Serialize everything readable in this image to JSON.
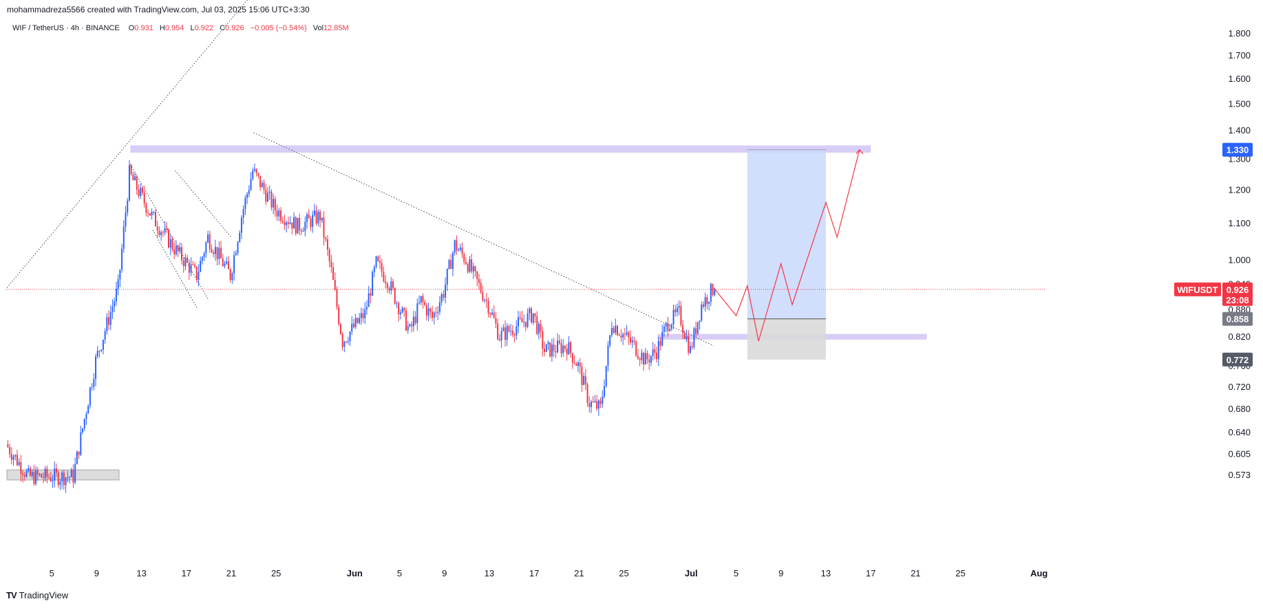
{
  "header": {
    "attribution": "mohammadreza5566 created with TradingView.com, Jul 03, 2025 15:06 UTC+3:30"
  },
  "legend": {
    "symbol": "WIF / TetherUS · 4h · BINANCE",
    "open_label": "O",
    "open": "0.931",
    "high_label": "H",
    "high": "0.954",
    "low_label": "L",
    "low": "0.922",
    "close_label": "C",
    "close": "0.926",
    "change": "−0.005 (−0.54%)",
    "vol_label": "Vol",
    "vol": "12.85M"
  },
  "footer": {
    "brand": "TradingView",
    "logo": "TV"
  },
  "colors": {
    "up": "#2962ff",
    "down": "#f23645",
    "zone": "#d1c4f5",
    "target_box": "#c9d8fc",
    "stop_box": "#d9d9d9"
  },
  "chart_data": {
    "type": "candlestick",
    "symbol": "WIFUSDT",
    "timeframe": "4h",
    "exchange": "BINANCE",
    "y_axis": {
      "scale": "log",
      "ticks": [
        "1.800",
        "1.700",
        "1.600",
        "1.500",
        "1.400",
        "1.300",
        "1.200",
        "1.100",
        "1.000",
        "0.940",
        "0.880",
        "0.820",
        "0.760",
        "0.720",
        "0.680",
        "0.640",
        "0.605",
        "0.573"
      ]
    },
    "x_axis": {
      "ticks": [
        "5",
        "9",
        "13",
        "17",
        "21",
        "25",
        "Jun",
        "5",
        "9",
        "13",
        "17",
        "21",
        "25",
        "Jul",
        "5",
        "9",
        "13",
        "17",
        "21",
        "25",
        "Aug"
      ]
    },
    "price_tags": [
      {
        "label": "1.330",
        "value": 1.33,
        "kind": "target"
      },
      {
        "label": "WIFUSDT",
        "value": 0.926,
        "kind": "symbol"
      },
      {
        "label": "0.926",
        "value": 0.926,
        "kind": "last",
        "countdown": "23:08"
      },
      {
        "label": "0.858",
        "value": 0.858,
        "kind": "entry"
      },
      {
        "label": "0.772",
        "value": 0.772,
        "kind": "stop"
      }
    ],
    "last_price": 0.926,
    "anchors": [
      {
        "date": "May 1",
        "price": 0.62
      },
      {
        "date": "May 3",
        "price": 0.57
      },
      {
        "date": "May 7",
        "price": 0.57
      },
      {
        "date": "May 9",
        "price": 0.77
      },
      {
        "date": "May 11",
        "price": 0.93
      },
      {
        "date": "May 12",
        "price": 1.25
      },
      {
        "date": "May 14",
        "price": 1.12
      },
      {
        "date": "May 16",
        "price": 1.03
      },
      {
        "date": "May 18",
        "price": 0.96
      },
      {
        "date": "May 19",
        "price": 1.06
      },
      {
        "date": "May 21",
        "price": 0.96
      },
      {
        "date": "May 22",
        "price": 1.12
      },
      {
        "date": "May 23",
        "price": 1.26
      },
      {
        "date": "May 25",
        "price": 1.14
      },
      {
        "date": "May 27",
        "price": 1.09
      },
      {
        "date": "May 29",
        "price": 1.12
      },
      {
        "date": "May 30",
        "price": 0.97
      },
      {
        "date": "May 31",
        "price": 0.81
      },
      {
        "date": "Jun 2",
        "price": 0.87
      },
      {
        "date": "Jun 3",
        "price": 0.99
      },
      {
        "date": "Jun 4",
        "price": 0.95
      },
      {
        "date": "Jun 6",
        "price": 0.83
      },
      {
        "date": "Jun 7",
        "price": 0.9
      },
      {
        "date": "Jun 8",
        "price": 0.86
      },
      {
        "date": "Jun 9",
        "price": 0.92
      },
      {
        "date": "Jun 10",
        "price": 1.04
      },
      {
        "date": "Jun 11",
        "price": 1.0
      },
      {
        "date": "Jun 13",
        "price": 0.89
      },
      {
        "date": "Jun 14",
        "price": 0.82
      },
      {
        "date": "Jun 16",
        "price": 0.85
      },
      {
        "date": "Jun 17",
        "price": 0.87
      },
      {
        "date": "Jun 18",
        "price": 0.79
      },
      {
        "date": "Jun 20",
        "price": 0.8
      },
      {
        "date": "Jun 21",
        "price": 0.76
      },
      {
        "date": "Jun 22",
        "price": 0.69
      },
      {
        "date": "Jun 23",
        "price": 0.68
      },
      {
        "date": "Jun 24",
        "price": 0.85
      },
      {
        "date": "Jun 26",
        "price": 0.8
      },
      {
        "date": "Jun 27",
        "price": 0.77
      },
      {
        "date": "Jun 28",
        "price": 0.79
      },
      {
        "date": "Jun 29",
        "price": 0.85
      },
      {
        "date": "Jun 30",
        "price": 0.87
      },
      {
        "date": "Jul 1",
        "price": 0.79
      },
      {
        "date": "Jul 2",
        "price": 0.89
      },
      {
        "date": "Jul 3",
        "price": 0.926
      }
    ],
    "zones": [
      {
        "from": "May 12",
        "to": "Jul 17",
        "price_low": 1.32,
        "price_high": 1.345
      },
      {
        "from": "Jun 28",
        "to": "Jul 22",
        "price_low": 0.813,
        "price_high": 0.825
      },
      {
        "from": "May 1",
        "to": "May 11",
        "price_low": 0.565,
        "price_high": 0.58
      }
    ],
    "position": {
      "from": "Jul 6",
      "to": "Jul 13",
      "entry": 0.858,
      "target": 1.33,
      "stop": 0.772
    },
    "trendlines": [
      {
        "from_date": "May 1",
        "from_price": 0.93,
        "to_date": "May 23",
        "to_price": 2.0
      },
      {
        "from_date": "May 12",
        "from_price": 1.28,
        "to_date": "May 19",
        "to_price": 0.9
      },
      {
        "from_date": "May 14",
        "from_price": 1.08,
        "to_date": "May 18",
        "to_price": 0.88
      },
      {
        "from_date": "May 16",
        "from_price": 1.26,
        "to_date": "May 21",
        "to_price": 1.06
      },
      {
        "from_date": "May 23",
        "from_price": 1.39,
        "to_date": "Jul 3",
        "to_price": 0.8
      }
    ],
    "projection": [
      {
        "date": "Jul 3",
        "price": 0.93
      },
      {
        "date": "Jul 5",
        "price": 0.865
      },
      {
        "date": "Jul 6",
        "price": 0.935
      },
      {
        "date": "Jul 7",
        "price": 0.81
      },
      {
        "date": "Jul 9",
        "price": 0.99
      },
      {
        "date": "Jul 10",
        "price": 0.89
      },
      {
        "date": "Jul 13",
        "price": 1.16
      },
      {
        "date": "Jul 14",
        "price": 1.06
      },
      {
        "date": "Jul 16",
        "price": 1.33
      }
    ]
  }
}
